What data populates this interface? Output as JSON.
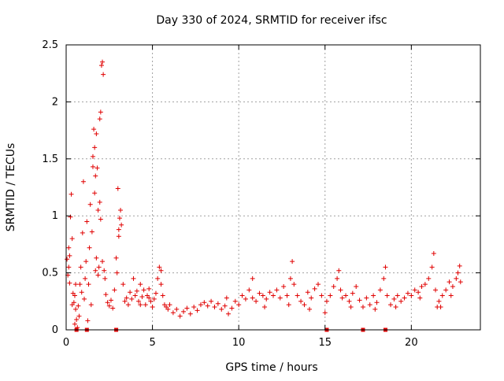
{
  "chart_data": {
    "type": "scatter",
    "title": "Day 330 of 2024, SRMTID for receiver ifsc",
    "xlabel": "GPS time / hours",
    "ylabel": "SRMTID / TECUs",
    "xlim": [
      0,
      24
    ],
    "ylim": [
      0,
      2.5
    ],
    "x_ticks": [
      0,
      5,
      10,
      15,
      20
    ],
    "x_tick_labels": [
      "0",
      "5",
      "10",
      "15",
      "20"
    ],
    "y_ticks": [
      0,
      0.5,
      1,
      1.5,
      2,
      2.5
    ],
    "y_tick_labels": [
      "0",
      "0.5",
      "1",
      "1.5",
      "2",
      "2.5"
    ],
    "grid": true,
    "marker": "plus",
    "series_color": "#e00000",
    "series": [
      {
        "name": "SRMTID",
        "points": [
          [
            0.05,
            0.62
          ],
          [
            0.1,
            0.48
          ],
          [
            0.15,
            0.72
          ],
          [
            0.2,
            0.41
          ],
          [
            0.25,
            0.99
          ],
          [
            0.3,
            1.19
          ],
          [
            0.35,
            0.22
          ],
          [
            0.4,
            0.32
          ],
          [
            0.45,
            0.24
          ],
          [
            0.5,
            0.3
          ],
          [
            0.55,
            0.18
          ],
          [
            0.6,
            0.09
          ],
          [
            0.65,
            0.02
          ],
          [
            0.7,
            0.21
          ],
          [
            0.75,
            0.12
          ],
          [
            0.8,
            0.4
          ],
          [
            0.85,
            0.55
          ],
          [
            0.9,
            0.33
          ],
          [
            0.95,
            0.85
          ],
          [
            1.0,
            1.3
          ],
          [
            1.05,
            0.27
          ],
          [
            1.1,
            0.45
          ],
          [
            1.15,
            0.6
          ],
          [
            1.2,
            0.95
          ],
          [
            1.25,
            0.08
          ],
          [
            1.3,
            0.4
          ],
          [
            1.35,
            0.72
          ],
          [
            1.4,
            1.1
          ],
          [
            1.45,
            0.22
          ],
          [
            1.5,
            0.86
          ],
          [
            1.55,
            1.52
          ],
          [
            1.6,
            1.76
          ],
          [
            1.65,
            1.2
          ],
          [
            1.7,
            1.35
          ],
          [
            1.75,
            0.63
          ],
          [
            1.8,
            1.42
          ],
          [
            1.85,
            1.05
          ],
          [
            1.9,
            0.55
          ],
          [
            1.95,
            1.85
          ],
          [
            2.0,
            1.91
          ],
          [
            2.05,
            2.32
          ],
          [
            2.1,
            2.35
          ],
          [
            2.15,
            2.24
          ],
          [
            2.2,
            0.52
          ],
          [
            2.25,
            0.45
          ],
          [
            2.3,
            0.31
          ],
          [
            2.4,
            0.24
          ],
          [
            2.5,
            0.21
          ],
          [
            2.6,
            0.26
          ],
          [
            2.7,
            0.19
          ],
          [
            2.8,
            0.35
          ],
          [
            2.9,
            0.63
          ],
          [
            2.95,
            0.5
          ],
          [
            3.0,
            1.24
          ],
          [
            3.05,
            0.88
          ],
          [
            3.1,
            0.98
          ],
          [
            3.15,
            1.05
          ],
          [
            3.2,
            0.92
          ],
          [
            3.3,
            0.4
          ],
          [
            3.4,
            0.25
          ],
          [
            3.5,
            0.28
          ],
          [
            3.6,
            0.22
          ],
          [
            3.7,
            0.33
          ],
          [
            3.8,
            0.27
          ],
          [
            3.9,
            0.45
          ],
          [
            4.0,
            0.3
          ],
          [
            4.1,
            0.34
          ],
          [
            4.2,
            0.25
          ],
          [
            4.3,
            0.4
          ],
          [
            4.4,
            0.29
          ],
          [
            4.5,
            0.35
          ],
          [
            4.6,
            0.22
          ],
          [
            4.7,
            0.3
          ],
          [
            4.8,
            0.28
          ],
          [
            4.9,
            0.25
          ],
          [
            5.0,
            0.2
          ],
          [
            5.1,
            0.27
          ],
          [
            5.2,
            0.32
          ],
          [
            5.3,
            0.45
          ],
          [
            5.4,
            0.55
          ],
          [
            5.5,
            0.52
          ],
          [
            5.6,
            0.3
          ],
          [
            5.7,
            0.22
          ],
          [
            5.8,
            0.2
          ],
          [
            5.9,
            0.18
          ],
          [
            6.0,
            0.22
          ],
          [
            6.2,
            0.15
          ],
          [
            6.4,
            0.18
          ],
          [
            6.6,
            0.12
          ],
          [
            6.8,
            0.16
          ],
          [
            7.0,
            0.19
          ],
          [
            7.2,
            0.14
          ],
          [
            7.4,
            0.2
          ],
          [
            7.6,
            0.17
          ],
          [
            7.8,
            0.22
          ],
          [
            8.0,
            0.24
          ],
          [
            8.2,
            0.21
          ],
          [
            8.4,
            0.25
          ],
          [
            8.6,
            0.2
          ],
          [
            8.8,
            0.23
          ],
          [
            9.0,
            0.18
          ],
          [
            9.2,
            0.21
          ],
          [
            9.4,
            0.14
          ],
          [
            9.6,
            0.19
          ],
          [
            9.8,
            0.25
          ],
          [
            10.0,
            0.22
          ],
          [
            10.2,
            0.3
          ],
          [
            10.4,
            0.27
          ],
          [
            10.6,
            0.35
          ],
          [
            10.8,
            0.28
          ],
          [
            11.0,
            0.25
          ],
          [
            11.2,
            0.32
          ],
          [
            11.4,
            0.3
          ],
          [
            11.6,
            0.27
          ],
          [
            11.8,
            0.33
          ],
          [
            12.0,
            0.3
          ],
          [
            12.2,
            0.35
          ],
          [
            12.4,
            0.28
          ],
          [
            12.6,
            0.38
          ],
          [
            12.8,
            0.3
          ],
          [
            13.0,
            0.45
          ],
          [
            13.1,
            0.6
          ],
          [
            13.2,
            0.4
          ],
          [
            13.4,
            0.3
          ],
          [
            13.6,
            0.25
          ],
          [
            13.8,
            0.22
          ],
          [
            14.0,
            0.33
          ],
          [
            14.2,
            0.28
          ],
          [
            14.4,
            0.36
          ],
          [
            14.6,
            0.4
          ],
          [
            14.8,
            0.3
          ],
          [
            15.0,
            0.15
          ],
          [
            15.1,
            0.25
          ],
          [
            15.3,
            0.3
          ],
          [
            15.5,
            0.38
          ],
          [
            15.7,
            0.45
          ],
          [
            15.8,
            0.52
          ],
          [
            15.9,
            0.35
          ],
          [
            16.0,
            0.28
          ],
          [
            16.2,
            0.3
          ],
          [
            16.4,
            0.25
          ],
          [
            16.6,
            0.32
          ],
          [
            16.8,
            0.38
          ],
          [
            17.0,
            0.26
          ],
          [
            17.2,
            0.2
          ],
          [
            17.4,
            0.28
          ],
          [
            17.6,
            0.22
          ],
          [
            17.8,
            0.3
          ],
          [
            18.0,
            0.24
          ],
          [
            18.2,
            0.35
          ],
          [
            18.4,
            0.45
          ],
          [
            18.5,
            0.55
          ],
          [
            18.6,
            0.3
          ],
          [
            18.8,
            0.22
          ],
          [
            19.0,
            0.27
          ],
          [
            19.2,
            0.3
          ],
          [
            19.4,
            0.25
          ],
          [
            19.6,
            0.28
          ],
          [
            19.8,
            0.32
          ],
          [
            20.0,
            0.3
          ],
          [
            20.2,
            0.35
          ],
          [
            20.4,
            0.33
          ],
          [
            20.6,
            0.38
          ],
          [
            20.8,
            0.4
          ],
          [
            21.0,
            0.45
          ],
          [
            21.2,
            0.55
          ],
          [
            21.3,
            0.67
          ],
          [
            21.4,
            0.35
          ],
          [
            21.5,
            0.2
          ],
          [
            21.6,
            0.25
          ],
          [
            21.8,
            0.3
          ],
          [
            22.0,
            0.35
          ],
          [
            22.2,
            0.42
          ],
          [
            22.4,
            0.38
          ],
          [
            22.6,
            0.45
          ],
          [
            22.7,
            0.5
          ],
          [
            22.8,
            0.56
          ],
          [
            22.85,
            0.42
          ],
          [
            5.5,
            0.4
          ],
          [
            3.05,
            0.82
          ],
          [
            0.15,
            0.55
          ],
          [
            0.2,
            0.65
          ],
          [
            1.75,
            1.72
          ],
          [
            1.65,
            1.6
          ],
          [
            1.55,
            1.43
          ],
          [
            1.95,
            1.12
          ],
          [
            2.1,
            0.6
          ],
          [
            1.85,
            0.48
          ],
          [
            2.0,
            0.97
          ],
          [
            1.7,
            0.52
          ],
          [
            0.5,
            0.05
          ],
          [
            0.55,
            0.4
          ],
          [
            0.35,
            0.8
          ],
          [
            4.3,
            0.22
          ],
          [
            4.8,
            0.36
          ],
          [
            9.3,
            0.28
          ],
          [
            10.8,
            0.45
          ],
          [
            11.5,
            0.2
          ],
          [
            12.9,
            0.22
          ],
          [
            14.1,
            0.18
          ],
          [
            16.5,
            0.2
          ],
          [
            17.9,
            0.18
          ],
          [
            19.1,
            0.2
          ],
          [
            20.5,
            0.28
          ],
          [
            21.7,
            0.2
          ],
          [
            22.3,
            0.3
          ]
        ],
        "zero_markers": [
          0.6,
          1.2,
          2.9,
          15.1,
          17.2,
          18.5
        ]
      }
    ]
  }
}
